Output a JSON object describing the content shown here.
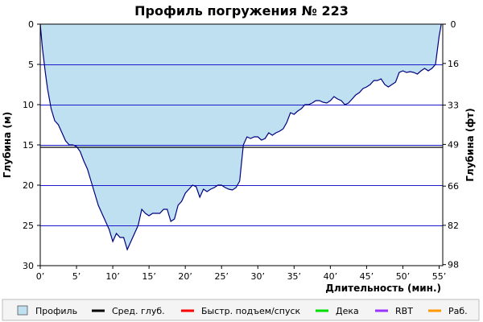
{
  "chart_data": {
    "type": "area",
    "title": "Профиль погружения № 223",
    "xlabel": "Длительность (мин.)",
    "ylabel_left": "Глубина (м)",
    "ylabel_right": "Глубина (фт)",
    "xlim": [
      0,
      55.5
    ],
    "ylim": [
      30,
      0
    ],
    "x_ticks": [
      0,
      5,
      10,
      15,
      20,
      25,
      30,
      35,
      40,
      45,
      50,
      55
    ],
    "x_tick_labels": [
      "0’",
      "5’",
      "10’",
      "15’",
      "20’",
      "25’",
      "30’",
      "35’",
      "40’",
      "45’",
      "50’",
      "55’"
    ],
    "y_ticks_left": [
      0,
      5,
      10,
      15,
      20,
      25,
      30
    ],
    "y_tick_labels_left": [
      "0",
      "5",
      "10",
      "15",
      "20",
      "25",
      "30"
    ],
    "y_ticks_right_m": [
      0,
      4.88,
      10.06,
      14.94,
      20.12,
      24.99,
      29.87
    ],
    "y_tick_labels_right": [
      "0",
      "16",
      "33",
      "49",
      "66",
      "82",
      "98"
    ],
    "grid": true,
    "series": [
      {
        "name": "Профиль",
        "color": "#bfe0f0",
        "x": [
          0,
          0.3,
          0.7,
          1,
          1.5,
          2,
          2.5,
          3,
          3.5,
          4,
          4.5,
          5,
          5.5,
          6,
          6.5,
          7,
          7.5,
          8,
          8.5,
          9,
          9.5,
          10,
          10.5,
          11,
          11.5,
          12,
          12.5,
          13,
          13.5,
          14,
          14.5,
          15,
          15.5,
          16,
          16.5,
          17,
          17.5,
          18,
          18.5,
          19,
          19.5,
          20,
          20.5,
          21,
          21.5,
          22,
          22.5,
          23,
          23.5,
          24,
          24.5,
          25,
          25.5,
          26,
          26.5,
          27,
          27.5,
          28,
          28.5,
          29,
          29.5,
          30,
          30.5,
          31,
          31.5,
          32,
          32.5,
          33,
          33.5,
          34,
          34.5,
          35,
          35.5,
          36,
          36.5,
          37,
          37.5,
          38,
          38.5,
          39,
          39.5,
          40,
          40.5,
          41,
          41.5,
          42,
          42.5,
          43,
          43.5,
          44,
          44.5,
          45,
          45.5,
          46,
          46.5,
          47,
          47.5,
          48,
          48.5,
          49,
          49.5,
          50,
          50.5,
          51,
          51.5,
          52,
          52.5,
          53,
          53.5,
          54,
          54.5,
          55,
          55.3
        ],
        "y": [
          0,
          3,
          6,
          8,
          10.5,
          12,
          12.5,
          13.5,
          14.5,
          15,
          15,
          15.2,
          15.8,
          17,
          18,
          19.5,
          21,
          22.5,
          23.5,
          24.5,
          25.5,
          27,
          26,
          26.5,
          26.5,
          28,
          27,
          26,
          25,
          23,
          23.5,
          23.8,
          23.5,
          23.5,
          23.5,
          23,
          23,
          24.5,
          24.2,
          22.5,
          22,
          21,
          20.5,
          20,
          20.2,
          21.5,
          20.5,
          20.8,
          20.5,
          20.3,
          20,
          20,
          20.3,
          20.5,
          20.6,
          20.3,
          19.5,
          15,
          14,
          14.2,
          14,
          14,
          14.4,
          14.2,
          13.5,
          13.8,
          13.5,
          13.3,
          13,
          12.2,
          11,
          11.2,
          10.8,
          10.5,
          10,
          10,
          9.8,
          9.5,
          9.5,
          9.7,
          9.8,
          9.5,
          9,
          9.3,
          9.5,
          10,
          9.8,
          9.3,
          8.8,
          8.5,
          8,
          7.8,
          7.5,
          7,
          7,
          6.8,
          7.5,
          7.8,
          7.5,
          7.2,
          6,
          5.8,
          6,
          5.9,
          6,
          6.2,
          5.8,
          5.5,
          5.8,
          5.5,
          5,
          1.5,
          0
        ]
      },
      {
        "name": "Сред. глуб.",
        "color": "#000000",
        "y": 15.3
      }
    ],
    "legend": {
      "placement": "bottom",
      "items": [
        {
          "label": "Профиль",
          "color": "#bfe0f0",
          "marker": "box"
        },
        {
          "label": "Сред. глуб.",
          "color": "#000000",
          "marker": "line"
        },
        {
          "label": "Быстр. подъем/спуск",
          "color": "#ff0000",
          "marker": "line"
        },
        {
          "label": "Дека",
          "color": "#00dd00",
          "marker": "line"
        },
        {
          "label": "RBT",
          "color": "#9933ff",
          "marker": "line"
        },
        {
          "label": "Раб.",
          "color": "#ff9900",
          "marker": "line"
        }
      ]
    }
  }
}
